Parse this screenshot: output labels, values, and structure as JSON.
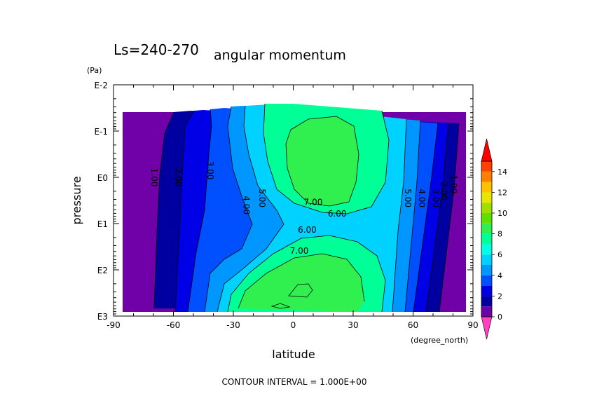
{
  "chart_data": {
    "type": "contour",
    "title": "angular momentum",
    "subtitle": "Ls=240-270",
    "xlabel": "latitude",
    "xunit": "(degree_north)",
    "ylabel": "pressure",
    "yunit": "(Pa)",
    "x_ticks": [
      "-90",
      "-60",
      "-30",
      "0",
      "30",
      "60",
      "90"
    ],
    "y_ticks": [
      "E-2",
      "E-1",
      "E0",
      "E1",
      "E2",
      "E3"
    ],
    "xlim": [
      -90,
      90
    ],
    "y_scale": "log",
    "ylim_log10": [
      -2,
      3
    ],
    "footer": "CONTOUR INTERVAL = 1.000E+00",
    "contour_interval": 1,
    "colorbar_ticks": [
      "0",
      "2",
      "4",
      "6",
      "8",
      "10",
      "12",
      "14"
    ],
    "colorbar_levels": [
      0,
      1,
      2,
      3,
      4,
      5,
      6,
      7,
      8,
      9,
      10,
      11,
      12,
      13,
      14,
      15
    ],
    "colorbar_colors": [
      "#7000a8",
      "#0000a0",
      "#0000e6",
      "#0050ff",
      "#0096ff",
      "#00d2ff",
      "#00ffe6",
      "#00ff96",
      "#30f050",
      "#60e000",
      "#a0e000",
      "#e6e600",
      "#ffc000",
      "#ff8000",
      "#ff4000",
      "#ff0000"
    ],
    "contour_labels": [
      {
        "text": "1.00",
        "lat": -71,
        "log_p": 0.0
      },
      {
        "text": "2.00",
        "lat": -59,
        "log_p": 0.0
      },
      {
        "text": "3.00",
        "lat": -43,
        "log_p": -0.15
      },
      {
        "text": "4.00",
        "lat": -25,
        "log_p": 0.6
      },
      {
        "text": "5.00",
        "lat": -17,
        "log_p": 0.45
      },
      {
        "text": "7.00",
        "lat": 10,
        "log_p": 0.6
      },
      {
        "text": "6.00",
        "lat": 22,
        "log_p": 0.85
      },
      {
        "text": "6.00",
        "lat": 7,
        "log_p": 1.2
      },
      {
        "text": "7.00",
        "lat": 3,
        "log_p": 1.65
      },
      {
        "text": "5.00",
        "lat": 56,
        "log_p": 0.45
      },
      {
        "text": "4.00",
        "lat": 63,
        "log_p": 0.45
      },
      {
        "text": "3.00",
        "lat": 70,
        "log_p": 0.45
      },
      {
        "text": "2.00",
        "lat": 74,
        "log_p": 0.3
      },
      {
        "text": "1.00",
        "lat": 79,
        "log_p": 0.15
      }
    ]
  }
}
